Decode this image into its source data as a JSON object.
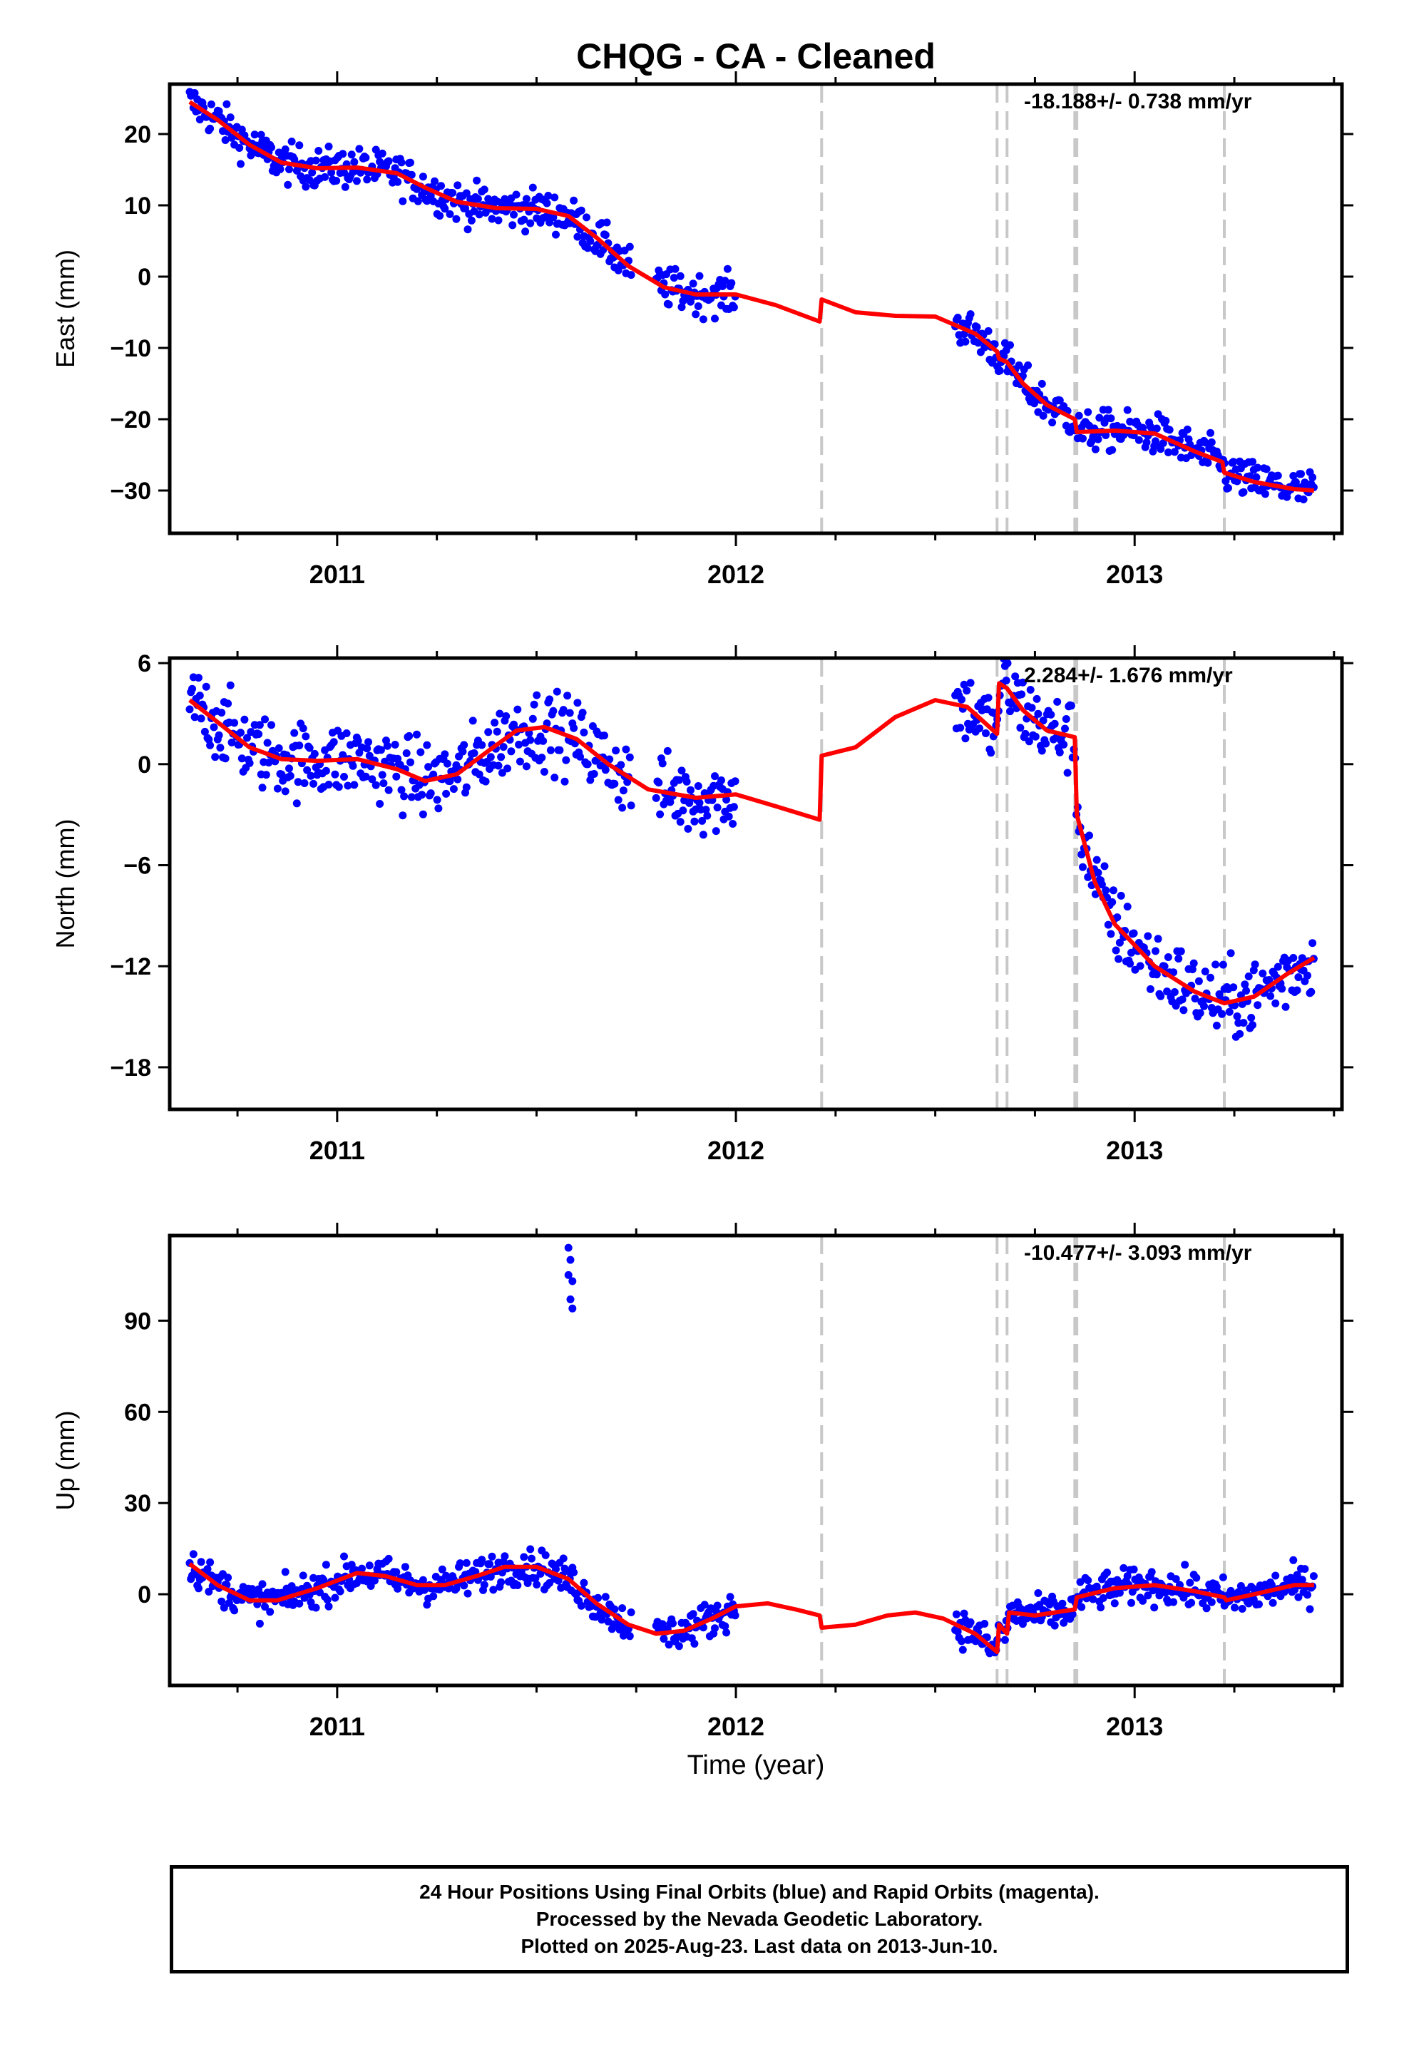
{
  "title": "CHQG  - CA - Cleaned",
  "colors": {
    "data": "#0000ff",
    "model": "#ff0000",
    "event_line": "#c8c8c8",
    "frame": "#000000"
  },
  "x_axis": {
    "label": "Time (year)",
    "ticks": [
      "2011",
      "2012",
      "2013"
    ],
    "range": [
      2010.58,
      2013.52
    ]
  },
  "event_lines_year": [
    2012.215,
    2012.655,
    2012.68,
    2012.85,
    2012.855,
    2013.225
  ],
  "chart_data": [
    {
      "type": "scatter",
      "name": "East",
      "ylabel": "East (mm)",
      "ylim": [
        -36,
        27
      ],
      "yticks": [
        20,
        10,
        0,
        -10,
        -20,
        -30
      ],
      "rate_label": "-18.188+/- 0.738 mm/yr",
      "scatter_ranges": [
        [
          2010.63,
          2011.74
        ],
        [
          2011.8,
          2012.0
        ],
        [
          2012.55,
          2013.45
        ]
      ],
      "model": [
        [
          2010.63,
          24.5
        ],
        [
          2010.7,
          22
        ],
        [
          2010.78,
          18.5
        ],
        [
          2010.86,
          16
        ],
        [
          2010.95,
          15.2
        ],
        [
          2011.05,
          15.3
        ],
        [
          2011.15,
          14.5
        ],
        [
          2011.22,
          12.5
        ],
        [
          2011.3,
          10.5
        ],
        [
          2011.4,
          9.6
        ],
        [
          2011.5,
          9.5
        ],
        [
          2011.58,
          8.5
        ],
        [
          2011.65,
          5.5
        ],
        [
          2011.73,
          1.5
        ],
        [
          2011.82,
          -1.5
        ],
        [
          2011.9,
          -2.5
        ],
        [
          2012.0,
          -2.5
        ],
        [
          2012.1,
          -4
        ],
        [
          2012.21,
          -6.3
        ],
        [
          2012.215,
          -3.2
        ],
        [
          2012.3,
          -5
        ],
        [
          2012.4,
          -5.5
        ],
        [
          2012.5,
          -5.6
        ],
        [
          2012.6,
          -8
        ],
        [
          2012.655,
          -10.5
        ],
        [
          2012.66,
          -11.5
        ],
        [
          2012.68,
          -12
        ],
        [
          2012.72,
          -15
        ],
        [
          2012.78,
          -18
        ],
        [
          2012.85,
          -20
        ],
        [
          2012.855,
          -21.8
        ],
        [
          2012.95,
          -21.6
        ],
        [
          2013.05,
          -22
        ],
        [
          2013.15,
          -24.5
        ],
        [
          2013.22,
          -26
        ],
        [
          2013.225,
          -27.5
        ],
        [
          2013.3,
          -28.8
        ],
        [
          2013.4,
          -29.8
        ],
        [
          2013.45,
          -30
        ]
      ]
    },
    {
      "type": "scatter",
      "name": "North",
      "ylabel": "North (mm)",
      "ylim": [
        -20.5,
        6.3
      ],
      "yticks": [
        6,
        0,
        -6,
        -12,
        -18
      ],
      "rate_label": "2.284+/- 1.676 mm/yr",
      "scatter_ranges": [
        [
          2010.63,
          2011.74
        ],
        [
          2011.8,
          2012.0
        ],
        [
          2012.55,
          2013.45
        ]
      ],
      "model": [
        [
          2010.63,
          3.8
        ],
        [
          2010.7,
          2.5
        ],
        [
          2010.78,
          1
        ],
        [
          2010.86,
          0.3
        ],
        [
          2010.95,
          0.2
        ],
        [
          2011.05,
          0.3
        ],
        [
          2011.15,
          -0.3
        ],
        [
          2011.22,
          -1
        ],
        [
          2011.3,
          -0.6
        ],
        [
          2011.38,
          0.8
        ],
        [
          2011.45,
          2
        ],
        [
          2011.52,
          2.2
        ],
        [
          2011.6,
          1.5
        ],
        [
          2011.68,
          0
        ],
        [
          2011.78,
          -1.5
        ],
        [
          2011.9,
          -2
        ],
        [
          2012.0,
          -1.8
        ],
        [
          2012.1,
          -2.5
        ],
        [
          2012.21,
          -3.3
        ],
        [
          2012.215,
          0.5
        ],
        [
          2012.3,
          1
        ],
        [
          2012.4,
          2.8
        ],
        [
          2012.5,
          3.8
        ],
        [
          2012.58,
          3.4
        ],
        [
          2012.655,
          1.8
        ],
        [
          2012.66,
          4.8
        ],
        [
          2012.68,
          4.5
        ],
        [
          2012.72,
          3.2
        ],
        [
          2012.78,
          2
        ],
        [
          2012.85,
          1.6
        ],
        [
          2012.855,
          -3
        ],
        [
          2012.9,
          -7
        ],
        [
          2012.95,
          -9.5
        ],
        [
          2013.05,
          -12
        ],
        [
          2013.15,
          -13.5
        ],
        [
          2013.225,
          -14.2
        ],
        [
          2013.3,
          -13.8
        ],
        [
          2013.38,
          -12.5
        ],
        [
          2013.45,
          -11.5
        ]
      ]
    },
    {
      "type": "scatter",
      "name": "Up",
      "ylabel": "Up (mm)",
      "ylim": [
        -30,
        118
      ],
      "yticks": [
        90,
        60,
        30,
        0
      ],
      "rate_label": "-10.477+/- 3.093 mm/yr",
      "scatter_ranges": [
        [
          2010.63,
          2011.74
        ],
        [
          2011.8,
          2012.0
        ],
        [
          2012.55,
          2013.45
        ]
      ],
      "outliers": [
        [
          2011.58,
          114
        ],
        [
          2011.585,
          110
        ],
        [
          2011.58,
          105
        ],
        [
          2011.59,
          103
        ],
        [
          2011.585,
          97
        ],
        [
          2011.59,
          94
        ]
      ],
      "model": [
        [
          2010.63,
          10
        ],
        [
          2010.7,
          3
        ],
        [
          2010.78,
          -2
        ],
        [
          2010.85,
          -2
        ],
        [
          2010.95,
          2
        ],
        [
          2011.05,
          7
        ],
        [
          2011.12,
          6
        ],
        [
          2011.2,
          3
        ],
        [
          2011.27,
          3
        ],
        [
          2011.35,
          6
        ],
        [
          2011.42,
          9
        ],
        [
          2011.5,
          9
        ],
        [
          2011.58,
          5
        ],
        [
          2011.65,
          -3
        ],
        [
          2011.73,
          -10
        ],
        [
          2011.8,
          -13
        ],
        [
          2011.87,
          -12
        ],
        [
          2011.94,
          -8
        ],
        [
          2012.0,
          -4
        ],
        [
          2012.08,
          -3
        ],
        [
          2012.15,
          -5
        ],
        [
          2012.21,
          -7
        ],
        [
          2012.215,
          -11
        ],
        [
          2012.3,
          -10
        ],
        [
          2012.38,
          -7
        ],
        [
          2012.45,
          -6
        ],
        [
          2012.52,
          -8
        ],
        [
          2012.6,
          -13
        ],
        [
          2012.655,
          -19
        ],
        [
          2012.66,
          -10
        ],
        [
          2012.68,
          -13
        ],
        [
          2012.685,
          -6
        ],
        [
          2012.75,
          -7
        ],
        [
          2012.85,
          -5
        ],
        [
          2012.855,
          -1
        ],
        [
          2012.95,
          2
        ],
        [
          2013.05,
          3
        ],
        [
          2013.15,
          1
        ],
        [
          2013.225,
          -1
        ],
        [
          2013.23,
          -2
        ],
        [
          2013.3,
          0
        ],
        [
          2013.4,
          3
        ],
        [
          2013.45,
          3
        ]
      ]
    }
  ],
  "caption": {
    "line1": "24 Hour Positions Using Final Orbits (blue) and Rapid Orbits (magenta).",
    "line2": "Processed by the Nevada Geodetic Laboratory.",
    "line3": "Plotted on 2025-Aug-23. Last data on 2013-Jun-10."
  }
}
